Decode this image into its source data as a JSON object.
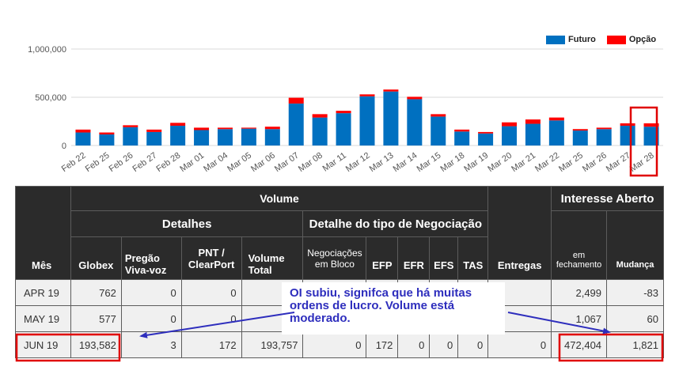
{
  "chart_data": {
    "type": "bar",
    "stacked": true,
    "categories": [
      "Feb 22",
      "Feb 25",
      "Feb 26",
      "Feb 27",
      "Feb 28",
      "Mar 01",
      "Mar 04",
      "Mar 05",
      "Mar 06",
      "Mar 07",
      "Mar 08",
      "Mar 11",
      "Mar 12",
      "Mar 13",
      "Mar 14",
      "Mar 15",
      "Mar 18",
      "Mar 19",
      "Mar 20",
      "Mar 21",
      "Mar 22",
      "Mar 25",
      "Mar 26",
      "Mar 27",
      "Mar 28"
    ],
    "series": [
      {
        "name": "Futuro",
        "color": "#0070c0",
        "values": [
          135000,
          115000,
          190000,
          140000,
          205000,
          160000,
          170000,
          175000,
          170000,
          435000,
          290000,
          335000,
          510000,
          560000,
          480000,
          300000,
          145000,
          125000,
          200000,
          225000,
          260000,
          155000,
          170000,
          205000,
          195000
        ]
      },
      {
        "name": "Opção",
        "color": "#ff0000",
        "values": [
          30000,
          20000,
          20000,
          25000,
          30000,
          25000,
          15000,
          10000,
          25000,
          60000,
          35000,
          25000,
          20000,
          20000,
          25000,
          25000,
          20000,
          15000,
          40000,
          45000,
          30000,
          15000,
          15000,
          25000,
          35000
        ]
      }
    ],
    "yticks": [
      "0",
      "500,000",
      "1,000,000"
    ],
    "ylim": [
      0,
      1000000
    ],
    "grid": true,
    "legend_position": "top-right"
  },
  "table": {
    "headers": {
      "mes": "Mês",
      "volume": "Volume",
      "interesse": "Interesse Aberto",
      "detalhes": "Detalhes",
      "detalhe_tipo": "Detalhe do tipo de Negociação",
      "globex": "Globex",
      "pregao": "Pregão Viva-voz",
      "pnt": "PNT / ClearPort",
      "volume_total": "Volume Total",
      "neg_bloco": "Negociações em Bloco",
      "efp": "EFP",
      "efr": "EFR",
      "efs": "EFS",
      "tas": "TAS",
      "entregas": "Entregas",
      "em_fechamento": "em fechamento",
      "mudanca": "Mudança"
    },
    "rows": [
      {
        "mes": "APR 19",
        "globex": "762",
        "pregao": "0",
        "pnt": "0",
        "volume_total": "",
        "neg_bloco": "",
        "efp": "",
        "efr": "",
        "efs": "",
        "tas": "",
        "entregas": "",
        "fechamento": "2,499",
        "mudanca": "-83"
      },
      {
        "mes": "MAY 19",
        "globex": "577",
        "pregao": "0",
        "pnt": "0",
        "volume_total": "",
        "neg_bloco": "",
        "efp": "",
        "efr": "",
        "efs": "",
        "tas": "",
        "entregas": "",
        "fechamento": "1,067",
        "mudanca": "60"
      },
      {
        "mes": "JUN 19",
        "globex": "193,582",
        "pregao": "3",
        "pnt": "172",
        "volume_total": "193,757",
        "neg_bloco": "0",
        "efp": "172",
        "efr": "0",
        "efs": "0",
        "tas": "0",
        "entregas": "0",
        "fechamento": "472,404",
        "mudanca": "1,821"
      }
    ]
  },
  "annotation": {
    "text": "OI subiu, signifca que há muitas ordens de lucro. Volume está moderado.",
    "color": "#2e2ebd",
    "highlight_color": "#e00000"
  }
}
